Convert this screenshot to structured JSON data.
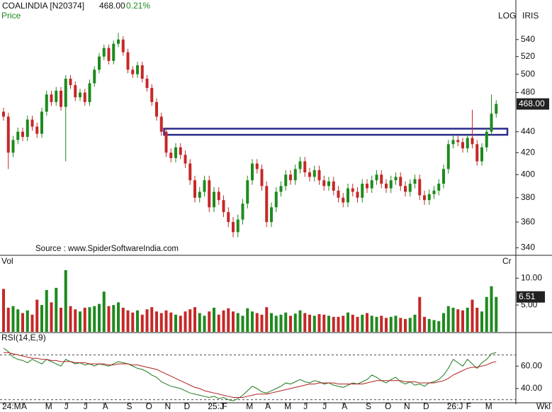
{
  "header": {
    "symbol": "COALINDIA [N20374]",
    "last": "468.00",
    "change": "0.21%",
    "scale_mode": "LOG",
    "style": "IRIS",
    "period": "Wkl",
    "source": "Source : www.SpiderSoftwareIndia.com"
  },
  "chart_data": [
    {
      "type": "candlestick",
      "label": "Price",
      "log": true,
      "up_color": "#1e8a1e",
      "down_color": "#c62828",
      "ylim": [
        337,
        585
      ],
      "yticks": [
        340,
        360,
        380,
        400,
        420,
        440,
        480,
        500,
        520,
        540
      ],
      "zone": {
        "from": 34,
        "low": 437,
        "high": 443,
        "color": "#2b2b8c"
      },
      "xticks": [
        {
          "value": 0,
          "label": "24:M"
        },
        {
          "value": 4,
          "label": "A"
        },
        {
          "value": 9,
          "label": "M"
        },
        {
          "value": 13,
          "label": "J"
        },
        {
          "value": 17,
          "label": "J"
        },
        {
          "value": 21,
          "label": "A"
        },
        {
          "value": 26,
          "label": "S"
        },
        {
          "value": 30,
          "label": "O"
        },
        {
          "value": 34,
          "label": "N"
        },
        {
          "value": 38,
          "label": "D"
        },
        {
          "value": 43,
          "label": "25:J"
        },
        {
          "value": 46,
          "label": "F"
        },
        {
          "value": 51,
          "label": "M"
        },
        {
          "value": 55,
          "label": "A"
        },
        {
          "value": 59,
          "label": "M"
        },
        {
          "value": 63,
          "label": "J"
        },
        {
          "value": 67,
          "label": "J"
        },
        {
          "value": 71,
          "label": "A"
        },
        {
          "value": 76,
          "label": "S"
        },
        {
          "value": 80,
          "label": "O"
        },
        {
          "value": 84,
          "label": "N"
        },
        {
          "value": 88,
          "label": "D"
        },
        {
          "value": 93,
          "label": "26:J"
        },
        {
          "value": 97,
          "label": "F"
        },
        {
          "value": 101,
          "label": "M"
        }
      ],
      "open": [
        460,
        455,
        420,
        432,
        440,
        435,
        452,
        445,
        438,
        460,
        478,
        470,
        482,
        465,
        495,
        488,
        475,
        480,
        470,
        490,
        505,
        520,
        530,
        515,
        535,
        540,
        525,
        505,
        500,
        510,
        495,
        485,
        470,
        455,
        440,
        420,
        415,
        425,
        418,
        410,
        395,
        380,
        385,
        395,
        372,
        385,
        378,
        368,
        360,
        352,
        362,
        375,
        395,
        410,
        405,
        390,
        360,
        372,
        385,
        390,
        400,
        395,
        405,
        412,
        402,
        398,
        404,
        395,
        390,
        394,
        386,
        380,
        376,
        388,
        385,
        380,
        392,
        388,
        395,
        400,
        392,
        388,
        395,
        398,
        390,
        385,
        392,
        396,
        382,
        378,
        383,
        386,
        392,
        405,
        428,
        432,
        430,
        424,
        434,
        428,
        412,
        425,
        440,
        458
      ],
      "high": [
        464,
        459,
        436,
        444,
        444,
        456,
        456,
        449,
        464,
        482,
        482,
        486,
        486,
        499,
        499,
        492,
        484,
        484,
        494,
        509,
        524,
        534,
        534,
        539,
        548,
        544,
        529,
        509,
        514,
        514,
        499,
        489,
        474,
        459,
        444,
        424,
        429,
        429,
        422,
        414,
        399,
        389,
        399,
        399,
        389,
        389,
        382,
        372,
        364,
        366,
        379,
        399,
        414,
        414,
        409,
        394,
        376,
        389,
        394,
        404,
        404,
        409,
        416,
        416,
        406,
        408,
        408,
        399,
        398,
        398,
        390,
        384,
        392,
        392,
        389,
        396,
        396,
        399,
        404,
        404,
        396,
        399,
        402,
        402,
        394,
        396,
        400,
        400,
        386,
        387,
        390,
        396,
        409,
        432,
        436,
        436,
        434,
        438,
        462,
        432,
        429,
        444,
        478,
        472
      ],
      "low": [
        451,
        405,
        416,
        428,
        431,
        431,
        441,
        434,
        434,
        456,
        466,
        466,
        461,
        412,
        484,
        471,
        471,
        466,
        466,
        486,
        501,
        516,
        511,
        511,
        531,
        521,
        501,
        496,
        496,
        491,
        481,
        466,
        451,
        436,
        416,
        411,
        411,
        414,
        406,
        391,
        376,
        376,
        381,
        368,
        368,
        374,
        364,
        356,
        348,
        348,
        358,
        371,
        391,
        401,
        386,
        356,
        356,
        368,
        381,
        386,
        391,
        391,
        401,
        398,
        394,
        394,
        391,
        386,
        386,
        382,
        376,
        372,
        372,
        381,
        376,
        376,
        384,
        384,
        391,
        388,
        384,
        384,
        391,
        386,
        381,
        381,
        388,
        378,
        374,
        374,
        379,
        382,
        388,
        401,
        424,
        426,
        420,
        420,
        424,
        408,
        408,
        421,
        436,
        454
      ],
      "close": [
        455,
        420,
        432,
        440,
        435,
        452,
        445,
        438,
        460,
        478,
        470,
        482,
        465,
        495,
        488,
        475,
        480,
        470,
        490,
        505,
        520,
        530,
        515,
        535,
        540,
        525,
        505,
        500,
        510,
        495,
        485,
        470,
        455,
        440,
        420,
        415,
        425,
        418,
        410,
        395,
        380,
        385,
        395,
        372,
        385,
        378,
        368,
        360,
        352,
        362,
        375,
        395,
        410,
        405,
        390,
        360,
        372,
        385,
        390,
        400,
        395,
        405,
        412,
        402,
        398,
        404,
        395,
        390,
        394,
        386,
        380,
        376,
        388,
        385,
        380,
        392,
        388,
        395,
        400,
        392,
        388,
        395,
        398,
        390,
        385,
        392,
        396,
        382,
        378,
        383,
        386,
        392,
        405,
        428,
        432,
        430,
        424,
        434,
        428,
        412,
        425,
        440,
        458,
        468
      ]
    },
    {
      "type": "bar",
      "label": "Vol",
      "unit_label": "Cr",
      "ylim": [
        0,
        14
      ],
      "yticks": [
        {
          "value": 5,
          "label": "5.00"
        },
        {
          "value": 10,
          "label": "10.00"
        }
      ],
      "values": [
        8.0,
        4.5,
        4.8,
        4.2,
        3.5,
        4.0,
        3.2,
        6.0,
        5.0,
        7.8,
        5.5,
        8.2,
        4.5,
        11.5,
        4.8,
        4.2,
        3.8,
        4.5,
        4.6,
        4.8,
        5.2,
        7.5,
        4.8,
        5.0,
        5.5,
        4.5,
        4.0,
        3.6,
        4.0,
        3.2,
        4.2,
        4.6,
        3.8,
        3.5,
        4.0,
        3.6,
        3.2,
        3.0,
        3.8,
        4.2,
        4.6,
        3.5,
        3.0,
        3.8,
        4.5,
        3.2,
        4.0,
        4.4,
        3.8,
        3.5,
        3.0,
        4.4,
        3.8,
        3.5,
        3.2,
        4.6,
        3.5,
        3.0,
        3.2,
        3.6,
        3.0,
        3.4,
        4.0,
        3.5,
        3.2,
        3.0,
        3.3,
        3.2,
        3.0,
        2.8,
        2.8,
        3.0,
        3.6,
        3.2,
        2.8,
        3.2,
        3.5,
        3.0,
        2.8,
        3.0,
        2.6,
        2.8,
        3.0,
        2.6,
        2.4,
        2.6,
        3.2,
        6.5,
        2.8,
        2.4,
        2.2,
        2.0,
        3.5,
        4.8,
        4.5,
        4.2,
        4.0,
        4.5,
        6.0,
        4.5,
        3.8,
        6.5,
        8.5,
        6.51
      ]
    },
    {
      "type": "line",
      "label": "RSI(14,E,9)",
      "ylim": [
        26,
        88
      ],
      "yticks": [
        {
          "value": 40,
          "label": "40.00"
        },
        {
          "value": 60,
          "label": "60.00"
        }
      ],
      "reference_lines": [
        30,
        70
      ],
      "series": [
        {
          "color": "#1e7a1e",
          "values": [
            76,
            73,
            68,
            66,
            65,
            63,
            66,
            64,
            62,
            66,
            64,
            62,
            60,
            66,
            64,
            62,
            63,
            61,
            62,
            60,
            62,
            61,
            60,
            62,
            64,
            63,
            62,
            60,
            58,
            57,
            55,
            52,
            50,
            46,
            44,
            42,
            41,
            40,
            38,
            36,
            35,
            34,
            33,
            32,
            33,
            31,
            32,
            30,
            29,
            31,
            34,
            38,
            42,
            40,
            37,
            36,
            38,
            40,
            42,
            45,
            44,
            46,
            48,
            46,
            45,
            47,
            46,
            44,
            45,
            43,
            42,
            41,
            43,
            45,
            44,
            46,
            48,
            52,
            50,
            47,
            45,
            48,
            50,
            46,
            44,
            46,
            43,
            44,
            42,
            45,
            46,
            48,
            52,
            58,
            66,
            63,
            60,
            66,
            62,
            58,
            63,
            66,
            71,
            72
          ]
        },
        {
          "color": "#b02020",
          "values": [
            72,
            72,
            71,
            70,
            69,
            68,
            67,
            67,
            66,
            66,
            65,
            65,
            64,
            64,
            64,
            63,
            63,
            63,
            62,
            62,
            62,
            62,
            61,
            61,
            62,
            62,
            62,
            61,
            61,
            60,
            59,
            58,
            57,
            55,
            53,
            51,
            49,
            47,
            45,
            43,
            41,
            40,
            38,
            37,
            36,
            35,
            34,
            33,
            32,
            32,
            32,
            33,
            34,
            35,
            35,
            35,
            36,
            37,
            38,
            39,
            40,
            41,
            42,
            43,
            44,
            44,
            45,
            45,
            45,
            45,
            44,
            44,
            44,
            44,
            44,
            44,
            45,
            46,
            47,
            47,
            47,
            47,
            47,
            47,
            46,
            46,
            46,
            45,
            45,
            45,
            45,
            46,
            47,
            49,
            52,
            54,
            56,
            58,
            59,
            59,
            60,
            61,
            63,
            64
          ]
        }
      ]
    }
  ]
}
